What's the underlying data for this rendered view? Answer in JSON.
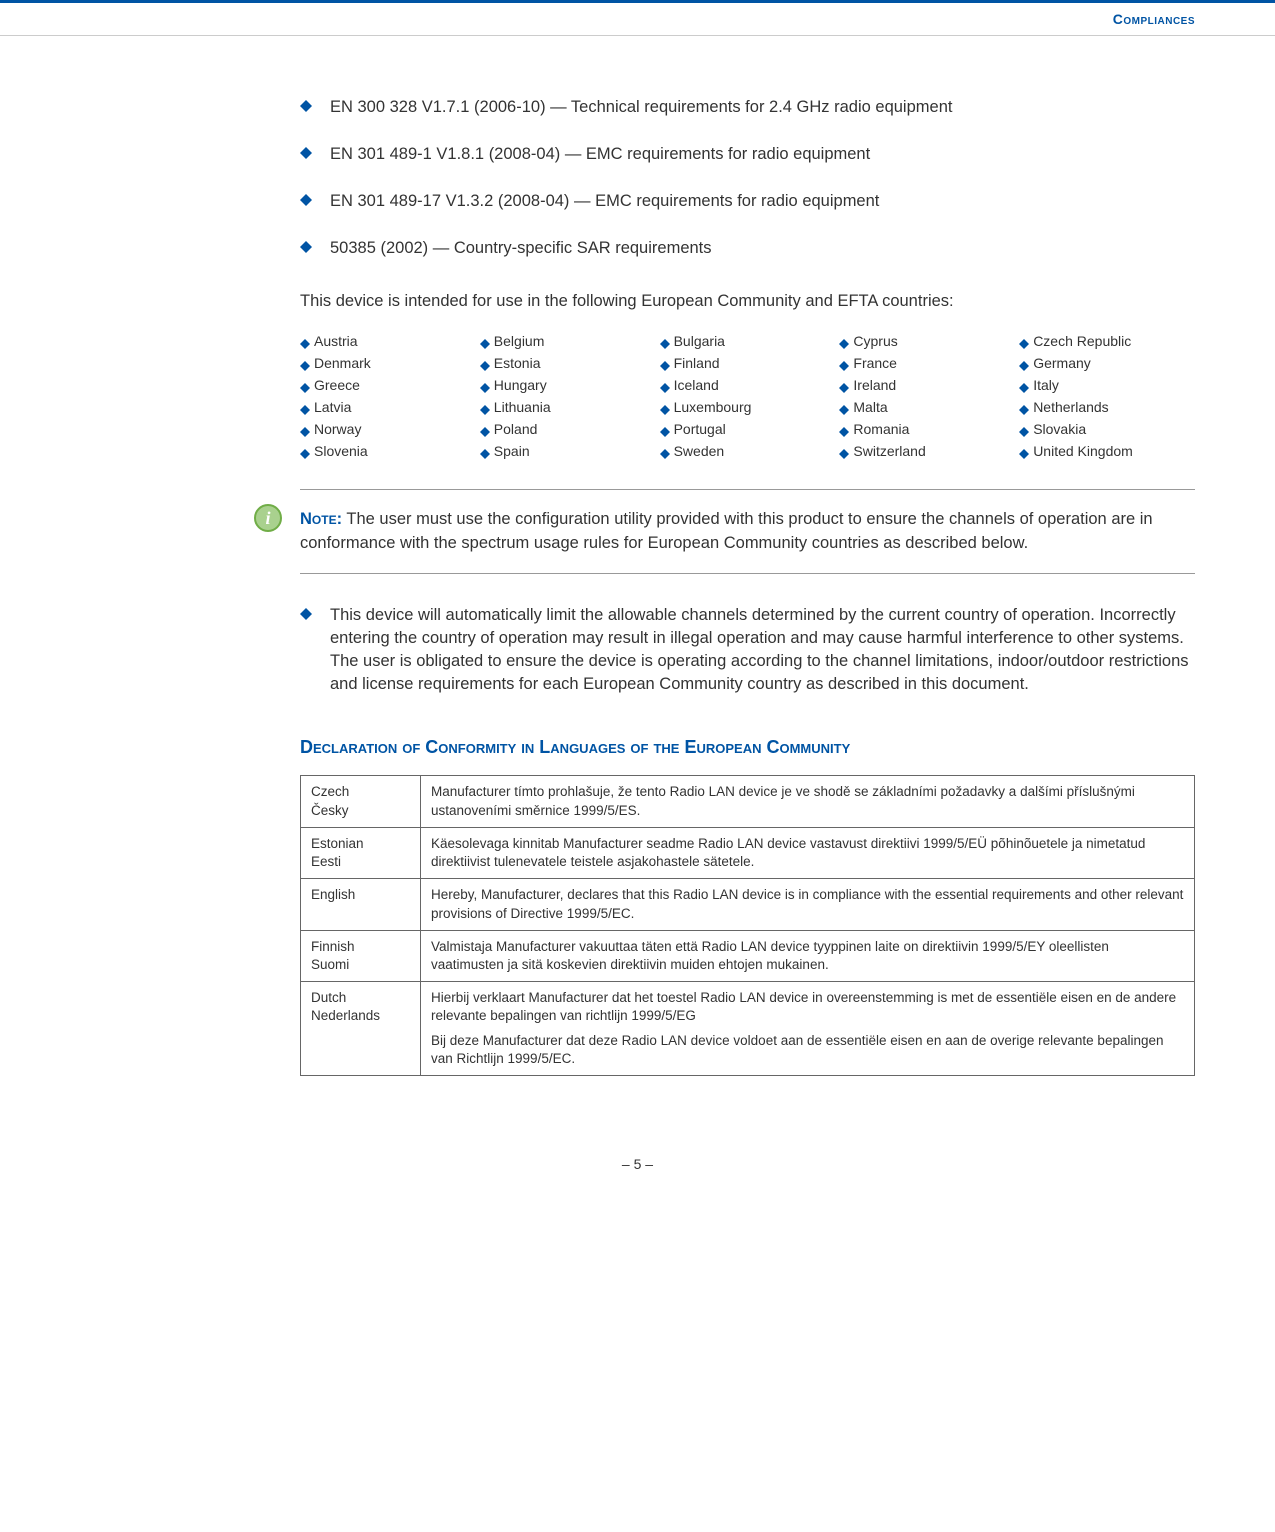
{
  "header": {
    "title": "Compliances"
  },
  "bullets_top": [
    "EN 300 328 V1.7.1 (2006-10) — Technical requirements for 2.4 GHz radio equipment",
    "EN 301 489-1 V1.8.1 (2008-04) — EMC requirements for radio equipment",
    "EN 301 489-17 V1.3.2 (2008-04) — EMC requirements for radio equipment",
    "50385 (2002) — Country-specific SAR requirements"
  ],
  "intro_paragraph": "This device is intended for use in the following European Community and EFTA countries:",
  "countries": [
    "Austria",
    "Belgium",
    "Bulgaria",
    "Cyprus",
    "Czech Republic",
    "Denmark",
    "Estonia",
    "Finland",
    "France",
    "Germany",
    "Greece",
    "Hungary",
    "Iceland",
    "Ireland",
    "Italy",
    "Latvia",
    "Lithuania",
    "Luxembourg",
    "Malta",
    "Netherlands",
    "Norway",
    "Poland",
    "Portugal",
    "Romania",
    "Slovakia",
    "Slovenia",
    "Spain",
    "Sweden",
    "Switzerland",
    "United Kingdom"
  ],
  "note": {
    "label": "Note:",
    "text": " The user must use the configuration utility provided with this product to ensure the channels of operation are in conformance with the spectrum usage rules for European Community countries as described below."
  },
  "bullets_mid": [
    "This device will automatically limit the allowable channels determined by the current country of operation. Incorrectly entering the country of operation may result in illegal operation and may cause harmful interference to other systems. The user is obligated to ensure the device is operating according to the channel limitations, indoor/outdoor restrictions and license requirements for each European Community country as described in this document."
  ],
  "declaration_heading": "Declaration of Conformity in Languages of the European Community",
  "declarations": [
    {
      "lang": "Czech\nČesky",
      "text": [
        "Manufacturer tímto prohlašuje, že tento Radio LAN device je ve shodě se základními požadavky a dalšími příslušnými ustanoveními směrnice 1999/5/ES."
      ]
    },
    {
      "lang": "Estonian\nEesti",
      "text": [
        "Käesolevaga kinnitab Manufacturer seadme Radio LAN device vastavust direktiivi 1999/5/EÜ põhinõuetele ja nimetatud direktiivist tulenevatele teistele asjakohastele sätetele."
      ]
    },
    {
      "lang": "English",
      "text": [
        "Hereby, Manufacturer, declares that this Radio LAN device is in compliance with the essential requirements and other relevant provisions of Directive 1999/5/EC."
      ]
    },
    {
      "lang": "Finnish\nSuomi",
      "text": [
        "Valmistaja Manufacturer vakuuttaa täten että Radio LAN device tyyppinen laite on direktiivin 1999/5/EY oleellisten vaatimusten ja sitä koskevien direktiivin muiden ehtojen mukainen."
      ]
    },
    {
      "lang": "Dutch\nNederlands",
      "text": [
        "Hierbij verklaart Manufacturer dat het toestel Radio LAN device in overeenstemming is met de essentiële eisen en de andere relevante bepalingen van richtlijn 1999/5/EG",
        "Bij deze Manufacturer dat deze Radio LAN device voldoet aan de essentiële eisen en aan de overige relevante bepalingen van Richtlijn 1999/5/EC."
      ]
    }
  ],
  "footer": {
    "page": "–  5  –"
  },
  "colors": {
    "accent": "#0054a4",
    "info_bg": "#a9d18e",
    "info_border": "#70ad47",
    "rule": "#999999",
    "table_border": "#666666"
  }
}
